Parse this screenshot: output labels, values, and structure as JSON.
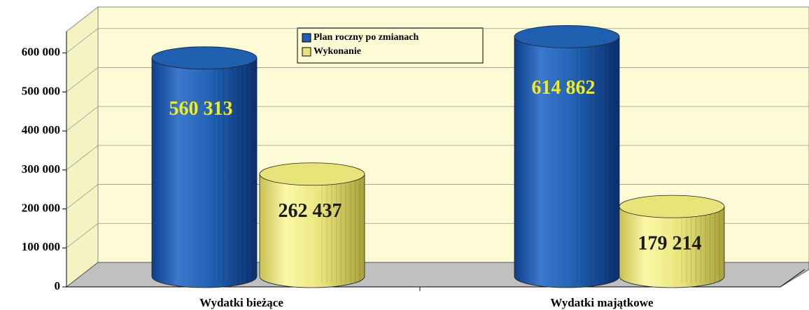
{
  "chart_data": {
    "type": "bar",
    "categories": [
      "Wydatki bieżące",
      "Wydatki majątkowe"
    ],
    "series": [
      {
        "name": "Plan roczny po zmianach",
        "color": "#1f5fb0",
        "values": [
          560313,
          614862
        ],
        "value_labels": [
          "560 313",
          "614 862"
        ]
      },
      {
        "name": "Wykonanie",
        "color": "#e8e47a",
        "values": [
          262437,
          179214
        ],
        "value_labels": [
          "262 437",
          "179 214"
        ]
      }
    ],
    "ylim": [
      0,
      700000
    ],
    "yticks": [
      0,
      {
        "value": 100000,
        "label": "100 000"
      },
      {
        "value": 200000,
        "label": "200 000"
      },
      {
        "value": 300000,
        "label": "300 000"
      },
      {
        "value": 400000,
        "label": "400 000"
      },
      {
        "value": 500000,
        "label": "500 000"
      },
      {
        "value": 600000,
        "label": "600 000"
      }
    ],
    "grid": true
  }
}
